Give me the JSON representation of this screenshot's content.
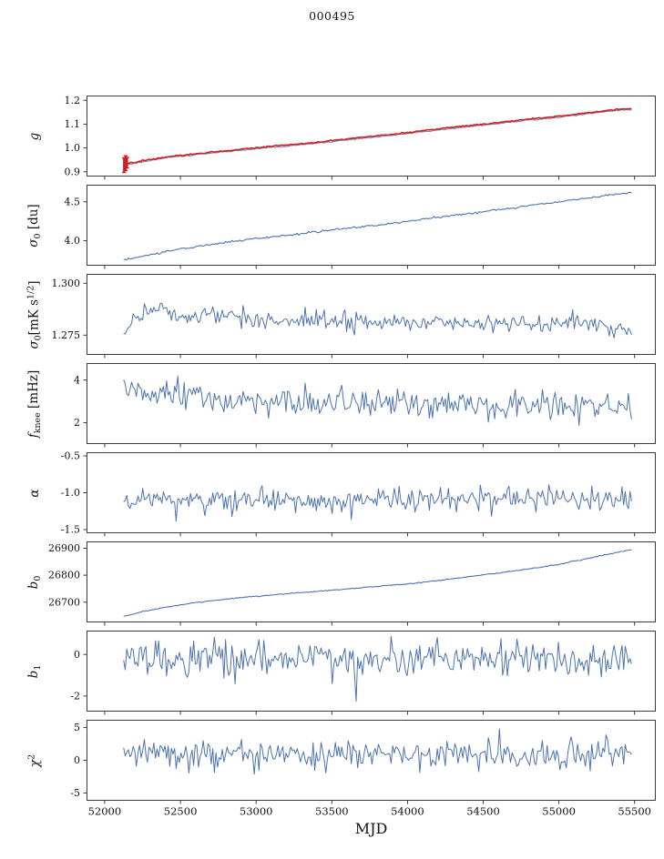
{
  "chart_data": {
    "type": "line",
    "title": "000495",
    "xlabel": "MJD",
    "legend": "none",
    "grid": false,
    "xlim": [
      51880,
      55640
    ],
    "xticks": [
      52000,
      52500,
      53000,
      53500,
      54000,
      54500,
      55000,
      55500
    ],
    "xtick_labels": [
      "52000",
      "52500",
      "53000",
      "53500",
      "54000",
      "54500",
      "55000",
      "55500"
    ],
    "x_start": 52125,
    "x_end": 55480,
    "n_points": 320,
    "colors": {
      "series_blue": "#4c72b0",
      "series_red": "#cf1f1f",
      "underlay_gray_blue": "#7d8db6",
      "axis": "#262626"
    },
    "panels": [
      {
        "name": "g",
        "ylabel_text": "g",
        "ylabel_parts": [
          {
            "text": "g",
            "style": "i"
          }
        ],
        "ylim": [
          0.88,
          1.22
        ],
        "yticks": [
          0.9,
          1.0,
          1.1,
          1.2
        ],
        "ytick_labels": [
          "0.9",
          "1.0",
          "1.1",
          "1.2"
        ],
        "series": [
          {
            "name": "g-underlay",
            "color": "#7d8db6",
            "width": 1.1,
            "noise_sigma": 0.0013,
            "seed": 21,
            "keypoints": [
              [
                52130,
                0.9285
              ],
              [
                52250,
                0.9415
              ],
              [
                52400,
                0.9575
              ],
              [
                52550,
                0.9675
              ],
              [
                52700,
                0.9785
              ],
              [
                52850,
                0.9865
              ],
              [
                53000,
                0.9965
              ],
              [
                53150,
                1.0045
              ],
              [
                53300,
                1.0135
              ],
              [
                53450,
                1.0225
              ],
              [
                53600,
                1.0335
              ],
              [
                53750,
                1.0435
              ],
              [
                53900,
                1.0525
              ],
              [
                54050,
                1.0635
              ],
              [
                54200,
                1.0755
              ],
              [
                54350,
                1.0855
              ],
              [
                54500,
                1.0955
              ],
              [
                54650,
                1.1055
              ],
              [
                54800,
                1.1165
              ],
              [
                54950,
                1.1255
              ],
              [
                55100,
                1.1365
              ],
              [
                55250,
                1.1475
              ],
              [
                55350,
                1.1555
              ],
              [
                55480,
                1.1615
              ]
            ]
          },
          {
            "name": "g-gain",
            "color": "#cf1f1f",
            "width": 1.6,
            "noise_sigma": 0.0013,
            "seed": 22,
            "keypoints": [
              [
                52130,
                0.933
              ],
              [
                52250,
                0.946
              ],
              [
                52400,
                0.962
              ],
              [
                52550,
                0.972
              ],
              [
                52700,
                0.983
              ],
              [
                52850,
                0.991
              ],
              [
                53000,
                1.001
              ],
              [
                53150,
                1.009
              ],
              [
                53300,
                1.018
              ],
              [
                53450,
                1.027
              ],
              [
                53600,
                1.038
              ],
              [
                53750,
                1.048
              ],
              [
                53900,
                1.057
              ],
              [
                54050,
                1.068
              ],
              [
                54200,
                1.08
              ],
              [
                54350,
                1.09
              ],
              [
                54500,
                1.1
              ],
              [
                54650,
                1.11
              ],
              [
                54800,
                1.121
              ],
              [
                54950,
                1.13
              ],
              [
                55100,
                1.141
              ],
              [
                55250,
                1.152
              ],
              [
                55350,
                1.16
              ],
              [
                55480,
                1.166
              ]
            ]
          }
        ],
        "errorbars": [
          {
            "x": 52128,
            "y0": 0.897,
            "y1": 0.958,
            "color": "#cf1f1f"
          },
          {
            "x": 52138,
            "y0": 0.905,
            "y1": 0.967,
            "color": "#cf1f1f"
          },
          {
            "x": 52148,
            "y0": 0.916,
            "y1": 0.96,
            "color": "#cf1f1f"
          }
        ]
      },
      {
        "name": "sigma0-du",
        "ylabel_text": "sigma_0 [du]",
        "ylabel_parts": [
          {
            "text": "σ",
            "style": "i"
          },
          {
            "text": "0",
            "style": "sub"
          },
          {
            "text": " [du]",
            "style": "n"
          }
        ],
        "ylim": [
          3.68,
          4.72
        ],
        "yticks": [
          4.0,
          4.5
        ],
        "ytick_labels": [
          "4.0",
          "4.5"
        ],
        "series": [
          {
            "name": "sigma0-du",
            "color": "#4c72b0",
            "width": 1.1,
            "noise_sigma": 0.006,
            "seed": 31,
            "keypoints": [
              [
                52130,
                3.755
              ],
              [
                52250,
                3.8
              ],
              [
                52400,
                3.86
              ],
              [
                52550,
                3.91
              ],
              [
                52700,
                3.955
              ],
              [
                52850,
                3.99
              ],
              [
                53000,
                4.03
              ],
              [
                53200,
                4.07
              ],
              [
                53400,
                4.115
              ],
              [
                53600,
                4.16
              ],
              [
                53800,
                4.2
              ],
              [
                54000,
                4.25
              ],
              [
                54200,
                4.3
              ],
              [
                54400,
                4.35
              ],
              [
                54600,
                4.4
              ],
              [
                54800,
                4.45
              ],
              [
                55000,
                4.5
              ],
              [
                55200,
                4.55
              ],
              [
                55480,
                4.625
              ]
            ]
          }
        ]
      },
      {
        "name": "sigma0-mks",
        "ylabel_text": "sigma_0 [mK s^(1/2)]",
        "ylabel_parts": [
          {
            "text": "σ",
            "style": "i"
          },
          {
            "text": "0",
            "style": "sub"
          },
          {
            "text": "[mK s",
            "style": "n"
          },
          {
            "text": "1/2",
            "style": "sup"
          },
          {
            "text": "]",
            "style": "n"
          }
        ],
        "ylim": [
          1.2655,
          1.3045
        ],
        "yticks": [
          1.275,
          1.3
        ],
        "ytick_labels": [
          "1.275",
          "1.300"
        ],
        "series": [
          {
            "name": "sigma0-mks",
            "color": "#4c72b0",
            "width": 1.0,
            "noise_sigma": 0.0021,
            "seed": 41,
            "keypoints": [
              [
                52130,
                1.277
              ],
              [
                52200,
                1.2835
              ],
              [
                52280,
                1.288
              ],
              [
                52400,
                1.2865
              ],
              [
                52550,
                1.283
              ],
              [
                52700,
                1.2855
              ],
              [
                52900,
                1.2835
              ],
              [
                53100,
                1.2825
              ],
              [
                53300,
                1.2815
              ],
              [
                53500,
                1.2825
              ],
              [
                53700,
                1.282
              ],
              [
                53900,
                1.2815
              ],
              [
                54100,
                1.2805
              ],
              [
                54300,
                1.281
              ],
              [
                54500,
                1.2805
              ],
              [
                54700,
                1.281
              ],
              [
                54900,
                1.28
              ],
              [
                55050,
                1.2815
              ],
              [
                55200,
                1.2805
              ],
              [
                55300,
                1.279
              ],
              [
                55480,
                1.2755
              ]
            ]
          }
        ]
      },
      {
        "name": "fknee",
        "ylabel_text": "f_knee [mHz]",
        "ylabel_parts": [
          {
            "text": "f",
            "style": "i"
          },
          {
            "text": "knee",
            "style": "sub"
          },
          {
            "text": " [mHz]",
            "style": "n"
          }
        ],
        "ylim": [
          1.0,
          4.8
        ],
        "yticks": [
          2,
          4
        ],
        "ytick_labels": [
          "2",
          "4"
        ],
        "series": [
          {
            "name": "fknee",
            "color": "#4c72b0",
            "width": 1.0,
            "noise_sigma": 0.32,
            "seed": 51,
            "keypoints": [
              [
                52130,
                3.45
              ],
              [
                52300,
                3.35
              ],
              [
                52500,
                3.25
              ],
              [
                52700,
                3.1
              ],
              [
                53000,
                3.0
              ],
              [
                53300,
                2.95
              ],
              [
                53600,
                2.9
              ],
              [
                54000,
                2.85
              ],
              [
                54400,
                2.8
              ],
              [
                54800,
                2.78
              ],
              [
                55100,
                2.75
              ],
              [
                55480,
                2.72
              ]
            ]
          }
        ]
      },
      {
        "name": "alpha",
        "ylabel_text": "alpha",
        "ylabel_parts": [
          {
            "text": "α",
            "style": "i"
          }
        ],
        "ylim": [
          -1.55,
          -0.45
        ],
        "yticks": [
          -1.5,
          -1.0,
          -0.5
        ],
        "ytick_labels": [
          "-1.5",
          "-1.0",
          "-0.5"
        ],
        "series": [
          {
            "name": "alpha",
            "color": "#4c72b0",
            "width": 1.0,
            "noise_sigma": 0.085,
            "seed": 61,
            "keypoints": [
              [
                52130,
                -1.1
              ],
              [
                55480,
                -1.1
              ]
            ]
          }
        ]
      },
      {
        "name": "b0",
        "ylabel_text": "b_0",
        "ylabel_parts": [
          {
            "text": "b",
            "style": "i"
          },
          {
            "text": "0",
            "style": "sub"
          }
        ],
        "ylim": [
          26625,
          26925
        ],
        "yticks": [
          26700,
          26800,
          26900
        ],
        "ytick_labels": [
          "26700",
          "26800",
          "26900"
        ],
        "series": [
          {
            "name": "b0",
            "color": "#4c72b0",
            "width": 1.1,
            "noise_sigma": 0.9,
            "seed": 71,
            "keypoints": [
              [
                52130,
                26648
              ],
              [
                52250,
                26665
              ],
              [
                52400,
                26681
              ],
              [
                52550,
                26694
              ],
              [
                52700,
                26705
              ],
              [
                52850,
                26714
              ],
              [
                53000,
                26722
              ],
              [
                53200,
                26731
              ],
              [
                53400,
                26740
              ],
              [
                53600,
                26749
              ],
              [
                53800,
                26758
              ],
              [
                54000,
                26768
              ],
              [
                54200,
                26780
              ],
              [
                54400,
                26794
              ],
              [
                54600,
                26808
              ],
              [
                54800,
                26823
              ],
              [
                55000,
                26840
              ],
              [
                55100,
                26852
              ],
              [
                55200,
                26863
              ],
              [
                55300,
                26875
              ],
              [
                55480,
                26895
              ]
            ]
          }
        ]
      },
      {
        "name": "b1",
        "ylabel_text": "b_1",
        "ylabel_parts": [
          {
            "text": "b",
            "style": "i"
          },
          {
            "text": "1",
            "style": "sub"
          }
        ],
        "ylim": [
          -2.75,
          1.15
        ],
        "yticks": [
          -2,
          0
        ],
        "ytick_labels": [
          "-2",
          "0"
        ],
        "series": [
          {
            "name": "b1",
            "color": "#4c72b0",
            "width": 1.0,
            "noise_sigma": 0.42,
            "seed": 81,
            "keypoints": [
              [
                52130,
                -0.18
              ],
              [
                55480,
                -0.18
              ]
            ],
            "outliers": [
              [
                53660,
                -2.25
              ]
            ]
          }
        ]
      },
      {
        "name": "chi2",
        "ylabel_text": "chi^2",
        "ylabel_parts": [
          {
            "text": "χ",
            "style": "i"
          },
          {
            "text": "2",
            "style": "sup"
          }
        ],
        "ylim": [
          -6.2,
          6.2
        ],
        "yticks": [
          -5,
          0,
          5
        ],
        "ytick_labels": [
          "-5",
          "0",
          "5"
        ],
        "series": [
          {
            "name": "chi2",
            "color": "#4c72b0",
            "width": 1.0,
            "noise_sigma": 1.15,
            "seed": 91,
            "keypoints": [
              [
                52130,
                0.9
              ],
              [
                55480,
                0.9
              ]
            ],
            "outliers": [
              [
                54610,
                4.8
              ]
            ]
          }
        ]
      }
    ]
  }
}
